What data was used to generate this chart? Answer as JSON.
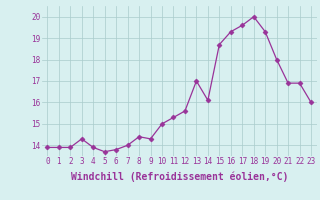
{
  "x": [
    0,
    1,
    2,
    3,
    4,
    5,
    6,
    7,
    8,
    9,
    10,
    11,
    12,
    13,
    14,
    15,
    16,
    17,
    18,
    19,
    20,
    21,
    22,
    23
  ],
  "y": [
    13.9,
    13.9,
    13.9,
    14.3,
    13.9,
    13.7,
    13.8,
    14.0,
    14.4,
    14.3,
    15.0,
    15.3,
    15.6,
    17.0,
    16.1,
    18.7,
    19.3,
    19.6,
    20.0,
    19.3,
    18.0,
    16.9,
    16.9,
    16.0
  ],
  "line_color": "#993399",
  "marker": "D",
  "marker_size": 2.5,
  "bg_color": "#d8f0f0",
  "grid_color": "#aacccc",
  "xlabel": "Windchill (Refroidissement éolien,°C)",
  "xlabel_color": "#993399",
  "tick_color": "#993399",
  "ylim": [
    13.5,
    20.5
  ],
  "xlim": [
    -0.5,
    23.5
  ],
  "yticks": [
    14,
    15,
    16,
    17,
    18,
    19,
    20
  ],
  "xticks": [
    0,
    1,
    2,
    3,
    4,
    5,
    6,
    7,
    8,
    9,
    10,
    11,
    12,
    13,
    14,
    15,
    16,
    17,
    18,
    19,
    20,
    21,
    22,
    23
  ],
  "xtick_labels": [
    "0",
    "1",
    "2",
    "3",
    "4",
    "5",
    "6",
    "7",
    "8",
    "9",
    "10",
    "11",
    "12",
    "13",
    "14",
    "15",
    "16",
    "17",
    "18",
    "19",
    "20",
    "21",
    "22",
    "23"
  ],
  "tick_fontsize": 5.5,
  "xlabel_fontsize": 7.0
}
